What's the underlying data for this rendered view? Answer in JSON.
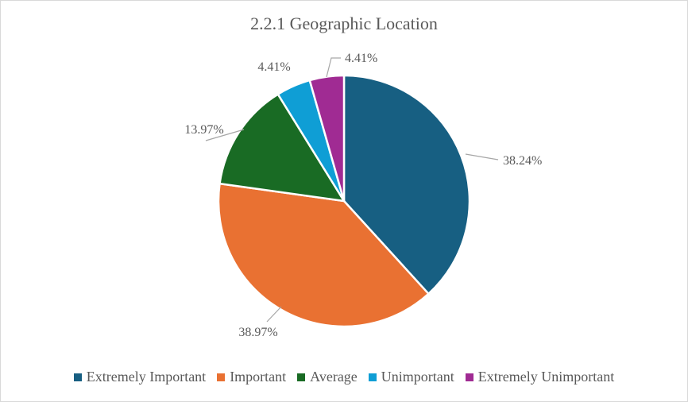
{
  "chart_data": {
    "type": "pie",
    "title": "2.2.1 Geographic Location",
    "categories": [
      "Extremely Important",
      "Important",
      "Average",
      "Unimportant",
      "Extremely Unimportant"
    ],
    "values": [
      38.24,
      38.97,
      13.97,
      4.41,
      4.41
    ],
    "data_labels": [
      "38.24%",
      "38.97%",
      "13.97%",
      "4.41%",
      "4.41%"
    ],
    "colors": [
      "#175f82",
      "#e97132",
      "#196b24",
      "#0f9ed5",
      "#a02b93"
    ],
    "start_angle_deg": 0,
    "direction": "clockwise",
    "legend_position": "bottom"
  }
}
